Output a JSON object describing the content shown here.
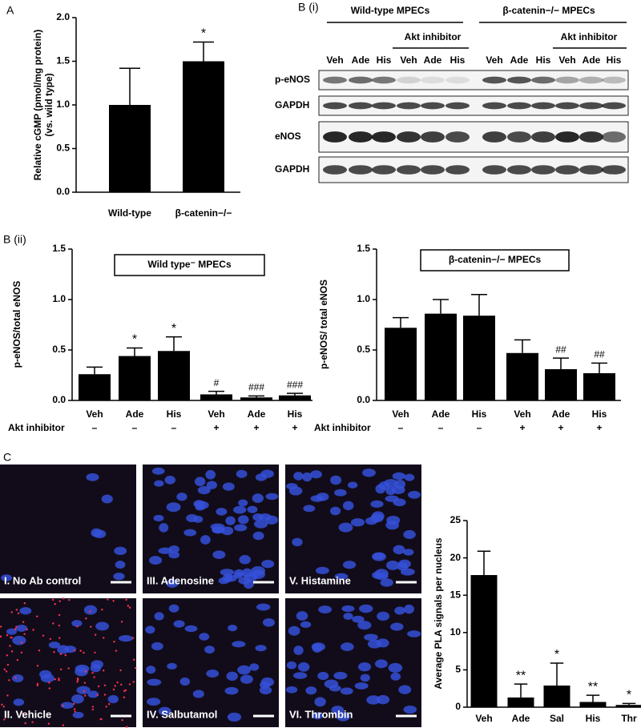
{
  "panel_labels": [
    "A",
    "B (i)",
    "B (ii)",
    "C"
  ],
  "blot": {
    "groups": [
      "Wild-type MPECs",
      "β-catenin−/− MPECs"
    ],
    "treatment": [
      "Akt inhibitor",
      "Akt inhibitor"
    ],
    "lanes": [
      "Veh",
      "Ade",
      "His",
      "Veh",
      "Ade",
      "His",
      "Veh",
      "Ade",
      "His",
      "Veh",
      "Ade",
      "His"
    ],
    "rows": [
      "p-eNOS",
      "GAPDH",
      "eNOS",
      "GAPDH"
    ]
  },
  "micrographs": [
    "I. No Ab control",
    "III. Adenosine",
    "V. Histamine",
    "II. Vehicle",
    "IV. Salbutamol",
    "VI. Thrombin"
  ],
  "chart_data": [
    {
      "type": "bar",
      "categories": [
        "Wild-type",
        "β-catenin−/−"
      ],
      "values": [
        1.0,
        1.5
      ],
      "errors": [
        0.42,
        0.22
      ],
      "color": "#000000",
      "sig": [
        null,
        "*"
      ],
      "y_label": [
        "Relative cGMP (pmol/mg protein)",
        "(vs. wild type)"
      ],
      "ylim": [
        0,
        2
      ],
      "yticks": [
        {
          "value": 0,
          "label": "0.0"
        },
        {
          "value": 0.5,
          "label": "0.5"
        },
        {
          "value": 1,
          "label": "1.0"
        },
        {
          "value": 1.5,
          "label": "1.5"
        },
        {
          "value": 2,
          "label": "2.0"
        }
      ]
    },
    {
      "type": "bar",
      "title": "Wild type⁻ MPECs",
      "categories": [
        "Veh",
        "Ade",
        "His",
        "Veh",
        "Ade",
        "His"
      ],
      "values": [
        0.26,
        0.44,
        0.49,
        0.06,
        0.03,
        0.05
      ],
      "errors": [
        0.07,
        0.08,
        0.14,
        0.03,
        0.015,
        0.02
      ],
      "color": "#000000",
      "sig": [
        null,
        "*",
        "*",
        "#",
        "###",
        "###"
      ],
      "y_label": "p-eNOS/total eNOS",
      "treatment_label": "Akt inhibitor",
      "treatment": [
        "–",
        "–",
        "–",
        "+",
        "+",
        "+"
      ],
      "ylim": [
        0,
        1.5
      ],
      "yticks": [
        {
          "value": 0,
          "label": "0.0"
        },
        {
          "value": 0.5,
          "label": "0.5"
        },
        {
          "value": 1,
          "label": "1.0"
        },
        {
          "value": 1.5,
          "label": "1.5"
        }
      ]
    },
    {
      "type": "bar",
      "title": "β-catenin−/− MPECs",
      "categories": [
        "Veh",
        "Ade",
        "His",
        "Veh",
        "Ade",
        "His"
      ],
      "values": [
        0.72,
        0.86,
        0.84,
        0.47,
        0.31,
        0.27
      ],
      "errors": [
        0.1,
        0.14,
        0.21,
        0.13,
        0.11,
        0.1
      ],
      "color": "#000000",
      "sig": [
        null,
        null,
        null,
        null,
        "##",
        "##"
      ],
      "y_label": "p-eNOS/ total eNOS",
      "treatment_label": "Akt inhibitor",
      "treatment": [
        "–",
        "–",
        "–",
        "+",
        "+",
        "+"
      ],
      "ylim": [
        0,
        1.5
      ],
      "yticks": [
        {
          "value": 0,
          "label": "0.0"
        },
        {
          "value": 0.5,
          "label": "0.5"
        },
        {
          "value": 1,
          "label": "1.0"
        },
        {
          "value": 1.5,
          "label": "1.5"
        }
      ]
    },
    {
      "type": "bar",
      "categories": [
        "Veh",
        "Ade",
        "Sal",
        "His",
        "Thr"
      ],
      "values": [
        17.7,
        1.3,
        2.9,
        0.7,
        0.3
      ],
      "errors": [
        3.2,
        1.8,
        3.0,
        0.9,
        0.2
      ],
      "color": "#000000",
      "sig": [
        null,
        "**",
        "*",
        "**",
        "*"
      ],
      "y_label": "Average PLA signals per nucleus",
      "ylim": [
        0,
        25
      ],
      "yticks": [
        0,
        5,
        10,
        15,
        20,
        25
      ]
    }
  ]
}
